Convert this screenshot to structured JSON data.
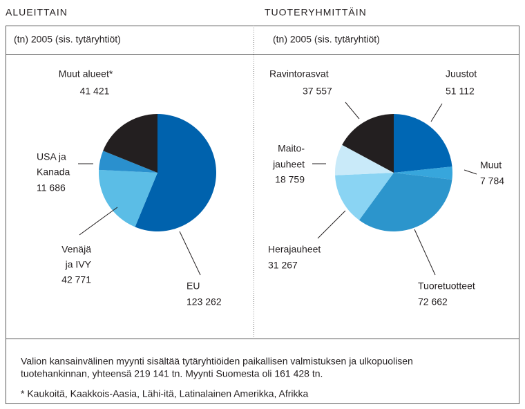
{
  "chart_data": [
    {
      "type": "pie",
      "title": "ALUEITTAIN",
      "subtitle": "(tn) 2005 (sis. tytäryhtiöt)",
      "categories": [
        [
          "EU"
        ],
        [
          "Venäjä",
          "ja IVY"
        ],
        [
          "USA ja",
          "Kanada"
        ],
        [
          "Muut alueet*"
        ]
      ],
      "values": [
        123262,
        42771,
        11686,
        41421
      ],
      "value_labels": [
        "123 262",
        "42 771",
        "11 686",
        "41 421"
      ],
      "colors": [
        "#0062ad",
        "#5bbde6",
        "#2a90ce",
        "#231f20"
      ]
    },
    {
      "type": "pie",
      "title": "TUOTERYHMITTÄIN",
      "subtitle": "(tn) 2005 (sis. tytäryhtiöt)",
      "categories": [
        [
          "Juustot"
        ],
        [
          "Muut"
        ],
        [
          "Tuoretuotteet"
        ],
        [
          "Herajauheet"
        ],
        [
          "Maito-",
          "jauheet"
        ],
        [
          "Ravintorasvat"
        ]
      ],
      "values": [
        51112,
        7784,
        72662,
        31267,
        18759,
        37557
      ],
      "value_labels": [
        "51 112",
        "7 784",
        "72 662",
        "31 267",
        "18 759",
        "37 557"
      ],
      "colors": [
        "#0067b4",
        "#37a6dc",
        "#2c95cc",
        "#8ad4f3",
        "#c9eaf9",
        "#231f20"
      ]
    }
  ],
  "notes": [
    "Valion kansainvälinen myynti sisältää tytäryhtiöiden paikallisen valmistuksen ja ulkopuolisen",
    "tuotehankinnan, yhteensä 219 141 tn. Myynti Suomesta oli 161 428 tn.",
    "* Kaukoitä, Kaakkois-Aasia, Lähi-itä, Latinalainen Amerikka, Afrikka"
  ]
}
